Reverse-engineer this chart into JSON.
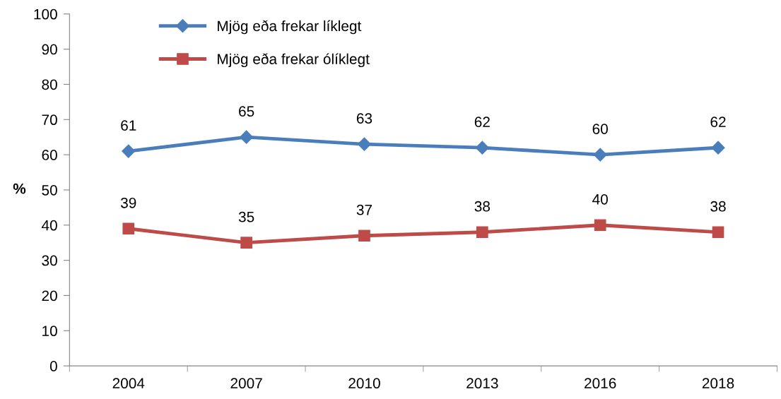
{
  "chart_data": {
    "type": "line",
    "ylabel": "%",
    "categories": [
      "2004",
      "2007",
      "2010",
      "2013",
      "2016",
      "2018"
    ],
    "series": [
      {
        "name": "Mjög eða frekar líklegt",
        "color": "#4a7ebb",
        "marker": "diamond",
        "values": [
          61,
          65,
          63,
          62,
          60,
          62
        ]
      },
      {
        "name": "Mjög eða frekar ólíklegt",
        "color": "#be4b48",
        "marker": "square",
        "values": [
          39,
          35,
          37,
          38,
          40,
          38
        ]
      }
    ],
    "ylim": [
      0,
      100
    ],
    "yticks": [
      0,
      10,
      20,
      30,
      40,
      50,
      60,
      70,
      80,
      90,
      100
    ],
    "data_labels": true,
    "grid": false,
    "legend": "top left",
    "line_style": "solid"
  }
}
